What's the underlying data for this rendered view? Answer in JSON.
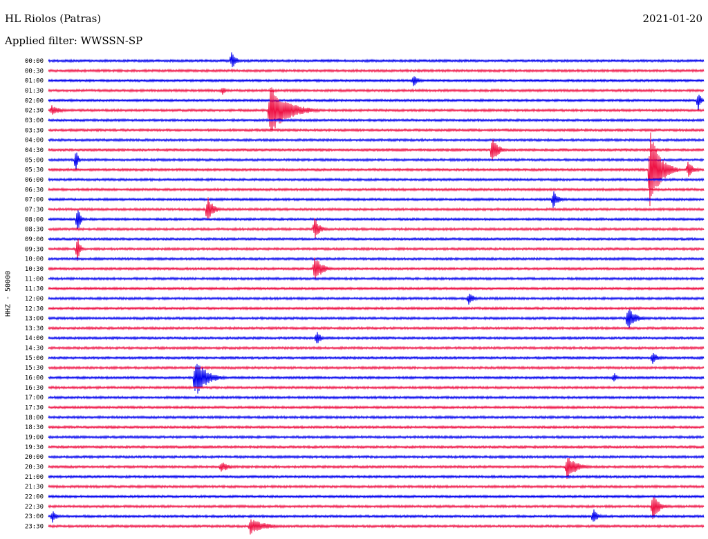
{
  "header": {
    "station": "HL Riolos (Patras)",
    "date": "2021-01-20",
    "filter": "Applied filter: WWSSN-SP"
  },
  "channel_label": "HHZ - 50000",
  "colors": {
    "even_rows": "#0000ee",
    "odd_rows": "#ee1144"
  },
  "chart_data": {
    "type": "line",
    "title": "",
    "row_labels": [
      "00:00",
      "00:30",
      "01:00",
      "01:30",
      "02:00",
      "02:30",
      "03:00",
      "03:30",
      "04:00",
      "04:30",
      "05:00",
      "05:30",
      "06:00",
      "06:30",
      "07:00",
      "07:30",
      "08:00",
      "08:30",
      "09:00",
      "09:30",
      "10:00",
      "10:30",
      "11:00",
      "11:30",
      "12:00",
      "12:30",
      "13:00",
      "13:30",
      "14:00",
      "14:30",
      "15:00",
      "15:30",
      "16:00",
      "16:30",
      "17:00",
      "17:30",
      "18:00",
      "18:30",
      "19:00",
      "19:30",
      "20:00",
      "20:30",
      "21:00",
      "21:30",
      "22:00",
      "22:30",
      "23:00",
      "23:30"
    ],
    "ylabel": "HHZ - 50000",
    "events": [
      {
        "row": 0,
        "x": 335,
        "amp": 14,
        "dur": 18
      },
      {
        "row": 2,
        "x": 598,
        "amp": 9,
        "dur": 20
      },
      {
        "row": 3,
        "x": 322,
        "amp": 7,
        "dur": 12
      },
      {
        "row": 4,
        "x": 1010,
        "amp": 16,
        "dur": 10
      },
      {
        "row": 5,
        "x": 75,
        "amp": 8,
        "dur": 35
      },
      {
        "row": 5,
        "x": 390,
        "amp": 38,
        "dur": 70
      },
      {
        "row": 9,
        "x": 712,
        "amp": 22,
        "dur": 22
      },
      {
        "row": 10,
        "x": 110,
        "amp": 20,
        "dur": 8
      },
      {
        "row": 11,
        "x": 940,
        "amp": 60,
        "dur": 40
      },
      {
        "row": 11,
        "x": 995,
        "amp": 12,
        "dur": 25
      },
      {
        "row": 14,
        "x": 800,
        "amp": 14,
        "dur": 20
      },
      {
        "row": 15,
        "x": 300,
        "amp": 22,
        "dur": 22
      },
      {
        "row": 16,
        "x": 112,
        "amp": 22,
        "dur": 12
      },
      {
        "row": 17,
        "x": 455,
        "amp": 18,
        "dur": 20
      },
      {
        "row": 19,
        "x": 112,
        "amp": 22,
        "dur": 10
      },
      {
        "row": 21,
        "x": 455,
        "amp": 20,
        "dur": 30
      },
      {
        "row": 24,
        "x": 678,
        "amp": 12,
        "dur": 18
      },
      {
        "row": 26,
        "x": 908,
        "amp": 18,
        "dur": 30
      },
      {
        "row": 28,
        "x": 458,
        "amp": 12,
        "dur": 16
      },
      {
        "row": 30,
        "x": 944,
        "amp": 10,
        "dur": 22
      },
      {
        "row": 32,
        "x": 282,
        "amp": 30,
        "dur": 45
      },
      {
        "row": 32,
        "x": 888,
        "amp": 8,
        "dur": 14
      },
      {
        "row": 41,
        "x": 820,
        "amp": 18,
        "dur": 40
      },
      {
        "row": 41,
        "x": 320,
        "amp": 8,
        "dur": 35
      },
      {
        "row": 45,
        "x": 944,
        "amp": 22,
        "dur": 25
      },
      {
        "row": 46,
        "x": 76,
        "amp": 10,
        "dur": 16
      },
      {
        "row": 46,
        "x": 858,
        "amp": 12,
        "dur": 18
      },
      {
        "row": 47,
        "x": 362,
        "amp": 12,
        "dur": 60
      }
    ]
  }
}
